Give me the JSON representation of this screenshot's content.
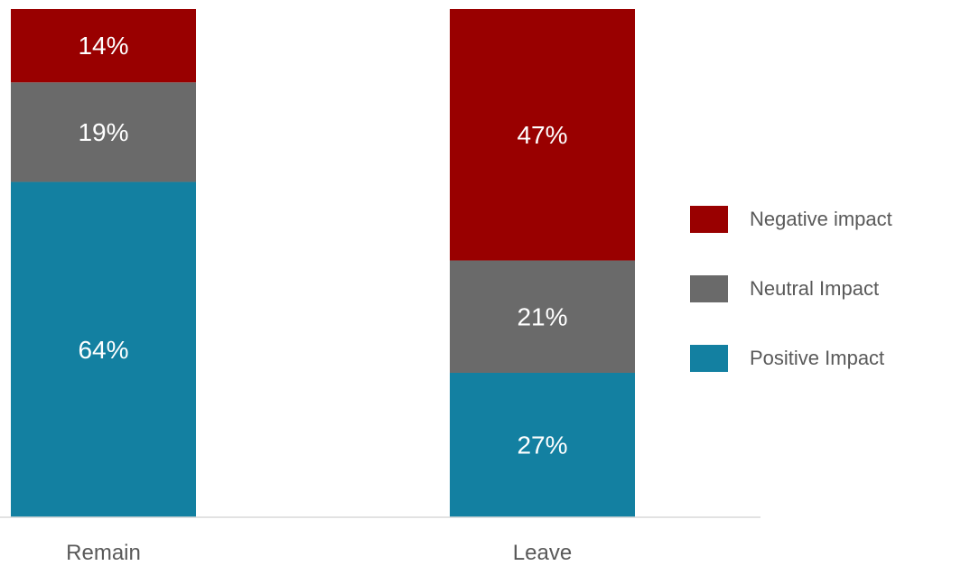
{
  "chart_data": {
    "type": "bar",
    "stacked": true,
    "normalized": true,
    "categories": [
      "Remain",
      "Leave"
    ],
    "series": [
      {
        "name": "Positive Impact",
        "values": [
          64,
          27
        ],
        "labels": [
          "64%",
          "27%"
        ],
        "color": "#1380A1"
      },
      {
        "name": "Neutral Impact",
        "values": [
          19,
          21
        ],
        "labels": [
          "19%",
          "21%"
        ],
        "color": "#6A6A6A"
      },
      {
        "name": "Negative impact",
        "values": [
          14,
          47
        ],
        "labels": [
          "14%",
          "47%"
        ],
        "color": "#990000"
      }
    ],
    "legend_position": "right",
    "legend_order": [
      "Negative impact",
      "Neutral Impact",
      "Positive Impact"
    ],
    "grid": false,
    "y_axis_visible": false,
    "label_color": "#FFFFFF",
    "category_label_color": "#595959",
    "axis_line_color": "#D9D9D9"
  }
}
